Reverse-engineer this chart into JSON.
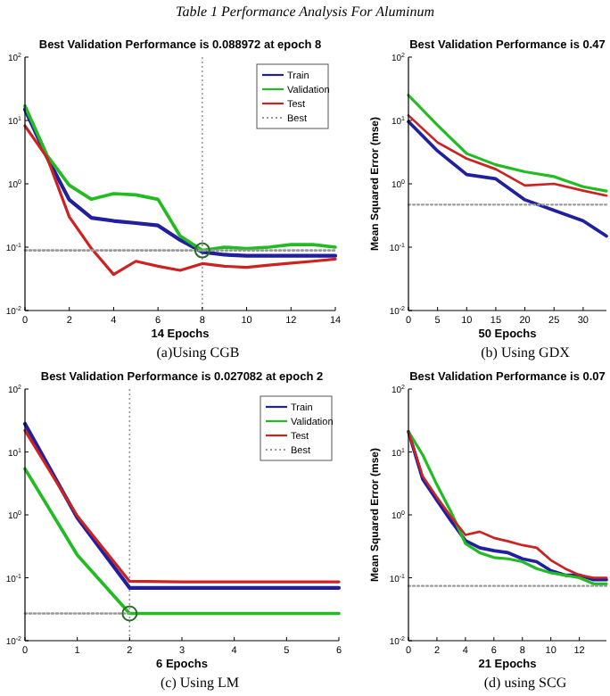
{
  "chart_data": [
    {
      "type": "line",
      "title": "Best Validation Performance is 0.088972 at epoch 8",
      "xlabel": "14 Epochs",
      "annotations": [
        "Table 1 Performance Analysis For Aluminum",
        "(a)Using CGB"
      ],
      "x": [
        0,
        1,
        2,
        3,
        4,
        5,
        6,
        7,
        8,
        9,
        10,
        11,
        12,
        13,
        14
      ],
      "xlim": [
        0,
        14
      ],
      "xticks": [
        0,
        2,
        4,
        6,
        8,
        10,
        12,
        14
      ],
      "ylim": [
        0.01,
        100
      ],
      "log": "y",
      "yticks": [
        {
          "value": 0.01,
          "label": "10$^{-2}$"
        },
        {
          "value": 0.1,
          "label": "10$^{-1}$"
        },
        {
          "value": 1,
          "label": "10$^{0}$"
        },
        {
          "value": 10,
          "label": "10$^{1}$"
        },
        {
          "value": 100,
          "label": "10$^{2}$"
        }
      ],
      "legend": "top right",
      "grid": false,
      "series": [
        {
          "name": "Train",
          "color": "#1f1f9f",
          "values": [
            15,
            2.6,
            0.56,
            0.29,
            0.26,
            0.24,
            0.22,
            0.13,
            0.084,
            0.076,
            0.073,
            0.073,
            0.073,
            0.073,
            0.073
          ]
        },
        {
          "name": "Validation",
          "color": "#22bb22",
          "values": [
            17,
            2.8,
            0.95,
            0.57,
            0.7,
            0.67,
            0.57,
            0.15,
            0.089,
            0.1,
            0.095,
            0.1,
            0.11,
            0.11,
            0.1
          ]
        },
        {
          "name": "Test",
          "color": "#cc2222",
          "values": [
            8.2,
            2.6,
            0.3,
            0.095,
            0.037,
            0.06,
            0.05,
            0.043,
            0.055,
            0.05,
            0.048,
            0.052,
            0.056,
            0.06,
            0.065
          ]
        },
        {
          "name": "Best",
          "type": "line",
          "color": "#999999",
          "line_style": "dotted",
          "x": [
            0,
            14
          ],
          "values": [
            0.088972,
            0.088972
          ]
        },
        {
          "type": "scatter",
          "color": "#2a6a2a",
          "marker": "circle",
          "x": [
            8
          ],
          "values": [
            0.088972
          ]
        }
      ],
      "ref_lines": [
        {
          "axis": "x",
          "value": 8,
          "color": "#999999",
          "line_style": "dotted"
        }
      ]
    },
    {
      "type": "line",
      "title": "Best Validation Performance is 0.47",
      "xlabel": "50 Epochs",
      "ylabel": "Mean Squared Error  (mse)",
      "annotations": [
        "(b) Using GDX"
      ],
      "x": [
        0,
        5,
        10,
        15,
        20,
        25,
        30,
        34
      ],
      "xlim": [
        0,
        34
      ],
      "xticks": [
        0,
        5,
        10,
        15,
        20,
        25,
        30
      ],
      "ylim": [
        0.01,
        100
      ],
      "log": "y",
      "yticks": [
        {
          "value": 0.01,
          "label": "10$^{-2}$"
        },
        {
          "value": 0.1,
          "label": "10$^{-1}$"
        },
        {
          "value": 1,
          "label": "10$^{0}$"
        },
        {
          "value": 10,
          "label": "10$^{1}$"
        },
        {
          "value": 100,
          "label": "10$^{2}$"
        }
      ],
      "grid": false,
      "series": [
        {
          "color": "#1f1f9f",
          "values": [
            9.6,
            3.3,
            1.4,
            1.2,
            0.56,
            0.38,
            0.26,
            0.15
          ]
        },
        {
          "color": "#22bb22",
          "values": [
            25,
            8.4,
            3,
            2,
            1.55,
            1.3,
            0.9,
            0.77
          ]
        },
        {
          "color": "#cc2222",
          "values": [
            12,
            4.5,
            2.5,
            1.7,
            0.94,
            1,
            0.78,
            0.65
          ]
        },
        {
          "type": "line",
          "color": "#999999",
          "line_style": "dotted",
          "x": [
            0,
            34
          ],
          "values": [
            0.47,
            0.47
          ]
        }
      ]
    },
    {
      "type": "line",
      "title": "Best Validation Performance is 0.027082 at epoch 2",
      "xlabel": "6 Epochs",
      "annotations": [
        "(c) Using LM"
      ],
      "x": [
        0,
        1,
        2,
        3,
        4,
        5,
        6
      ],
      "xlim": [
        0,
        6
      ],
      "xticks": [
        0,
        1,
        2,
        3,
        4,
        5,
        6
      ],
      "ylim": [
        0.01,
        100
      ],
      "log": "y",
      "yticks": [
        {
          "value": 0.01,
          "label": "10$^{-2}$"
        },
        {
          "value": 0.1,
          "label": "10$^{-1}$"
        },
        {
          "value": 1,
          "label": "10$^{0}$"
        },
        {
          "value": 10,
          "label": "10$^{1}$"
        },
        {
          "value": 100,
          "label": "10$^{2}$"
        }
      ],
      "legend": "top right",
      "grid": false,
      "series": [
        {
          "name": "Train",
          "color": "#1f1f9f",
          "values": [
            28,
            0.9,
            0.069,
            0.069,
            0.069,
            0.069,
            0.069
          ]
        },
        {
          "name": "Validation",
          "color": "#22bb22",
          "values": [
            5.4,
            0.23,
            0.027082,
            0.027082,
            0.027082,
            0.027082,
            0.027082
          ]
        },
        {
          "name": "Test",
          "color": "#cc2222",
          "values": [
            22,
            0.96,
            0.088,
            0.086,
            0.086,
            0.086,
            0.086
          ]
        },
        {
          "name": "Best",
          "type": "line",
          "color": "#999999",
          "line_style": "dotted",
          "x": [
            0,
            2
          ],
          "values": [
            0.027082,
            0.027082
          ]
        },
        {
          "type": "scatter",
          "color": "#2a6a2a",
          "marker": "circle",
          "x": [
            2
          ],
          "values": [
            0.027082
          ]
        }
      ],
      "ref_lines": [
        {
          "axis": "x",
          "value": 2,
          "color": "#999999",
          "line_style": "dotted"
        }
      ]
    },
    {
      "type": "line",
      "title": "Best Validation Performance is 0.07",
      "xlabel": "21 Epochs",
      "ylabel": "Mean Squared Error  (mse)",
      "annotations": [
        "(d) using SCG"
      ],
      "x": [
        0,
        1,
        2,
        3,
        4,
        5,
        6,
        7,
        8,
        9,
        10,
        11,
        12,
        13,
        13.9
      ],
      "xlim": [
        0,
        13.9
      ],
      "xticks": [
        0,
        2,
        4,
        6,
        8,
        10,
        12
      ],
      "ylim": [
        0.01,
        100
      ],
      "log": "y",
      "yticks": [
        {
          "value": 0.01,
          "label": "10$^{-2}$"
        },
        {
          "value": 0.1,
          "label": "10$^{-1}$"
        },
        {
          "value": 1,
          "label": "10$^{0}$"
        },
        {
          "value": 10,
          "label": "10$^{1}$"
        },
        {
          "value": 100,
          "label": "10$^{2}$"
        }
      ],
      "grid": false,
      "series": [
        {
          "color": "#1f1f9f",
          "values": [
            21,
            3.7,
            1.7,
            0.8,
            0.39,
            0.3,
            0.27,
            0.25,
            0.2,
            0.18,
            0.13,
            0.11,
            0.11,
            0.093,
            0.093
          ]
        },
        {
          "color": "#22bb22",
          "values": [
            21,
            9,
            3,
            1.1,
            0.35,
            0.25,
            0.21,
            0.2,
            0.18,
            0.14,
            0.12,
            0.11,
            0.1,
            0.08,
            0.08
          ]
        },
        {
          "color": "#cc2222",
          "values": [
            21,
            4.1,
            1.9,
            0.93,
            0.48,
            0.54,
            0.43,
            0.38,
            0.33,
            0.3,
            0.19,
            0.14,
            0.11,
            0.1,
            0.1
          ]
        },
        {
          "type": "line",
          "color": "#999999",
          "line_style": "dotted",
          "x": [
            0,
            13.9
          ],
          "values": [
            0.074,
            0.074
          ]
        }
      ]
    }
  ]
}
